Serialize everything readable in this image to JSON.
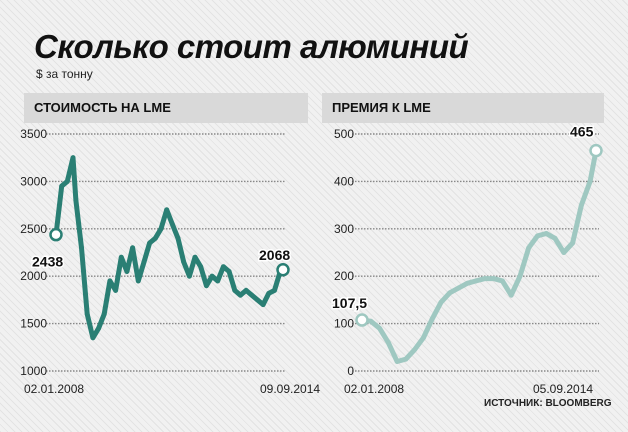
{
  "title": "Сколько стоит алюминий",
  "subtitle": "$ за тонну",
  "source": "ИСТОЧНИК: BLOOMBERG",
  "colors": {
    "lme_series": "#2a7f74",
    "premium_series": "#9fc8c1",
    "marker_fill": "#ffffff"
  },
  "chart_data": [
    {
      "type": "line",
      "title": "СТОИМОСТЬ НА LME",
      "ylim": [
        1000,
        3500
      ],
      "yticks": [
        "1000",
        "1500",
        "2000",
        "2500",
        "3000",
        "3500"
      ],
      "x_start_label": "02.01.2008",
      "x_end_label": "09.09.2014",
      "x": [
        "2008-01",
        "2008-03",
        "2008-05",
        "2008-07",
        "2008-08",
        "2008-10",
        "2008-12",
        "2009-02",
        "2009-04",
        "2009-06",
        "2009-08",
        "2009-10",
        "2009-12",
        "2010-02",
        "2010-04",
        "2010-06",
        "2010-08",
        "2010-10",
        "2010-12",
        "2011-02",
        "2011-04",
        "2011-06",
        "2011-08",
        "2011-10",
        "2011-12",
        "2012-02",
        "2012-04",
        "2012-06",
        "2012-08",
        "2012-10",
        "2012-12",
        "2013-02",
        "2013-04",
        "2013-06",
        "2013-08",
        "2013-10",
        "2013-12",
        "2014-02",
        "2014-04",
        "2014-06",
        "2014-08",
        "2014-09"
      ],
      "values": [
        2438,
        2950,
        3000,
        3250,
        2800,
        2300,
        1600,
        1350,
        1450,
        1600,
        1950,
        1850,
        2200,
        2050,
        2300,
        1950,
        2150,
        2350,
        2400,
        2500,
        2700,
        2550,
        2400,
        2150,
        2000,
        2200,
        2100,
        1900,
        2000,
        1950,
        2100,
        2050,
        1850,
        1800,
        1850,
        1800,
        1750,
        1700,
        1820,
        1850,
        2050,
        2068
      ],
      "annotations": [
        {
          "label": "2438",
          "value": 2438
        },
        {
          "label": "2068",
          "value": 2068
        }
      ]
    },
    {
      "type": "line",
      "title": "ПРЕМИЯ К LME",
      "ylim": [
        0,
        500
      ],
      "yticks": [
        "0",
        "100",
        "200",
        "300",
        "400",
        "500"
      ],
      "x_start_label": "02.01.2008",
      "x_end_label": "05.09.2014",
      "x": [
        "2008-01",
        "2008-04",
        "2008-07",
        "2008-10",
        "2009-01",
        "2009-04",
        "2009-07",
        "2009-10",
        "2010-01",
        "2010-04",
        "2010-07",
        "2010-10",
        "2011-01",
        "2011-04",
        "2011-07",
        "2011-10",
        "2012-01",
        "2012-04",
        "2012-07",
        "2012-10",
        "2013-01",
        "2013-04",
        "2013-07",
        "2013-10",
        "2014-01",
        "2014-04",
        "2014-07",
        "2014-09"
      ],
      "values": [
        107.5,
        105,
        90,
        60,
        20,
        25,
        45,
        70,
        110,
        145,
        165,
        175,
        185,
        190,
        195,
        195,
        190,
        160,
        200,
        260,
        285,
        290,
        280,
        250,
        270,
        350,
        400,
        465
      ],
      "annotations": [
        {
          "label": "107,5",
          "value": 107.5
        },
        {
          "label": "465",
          "value": 465
        }
      ]
    }
  ]
}
